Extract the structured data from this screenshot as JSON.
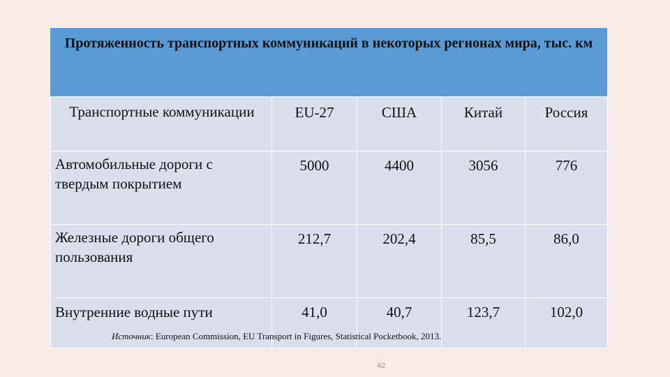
{
  "header": {
    "title": "Протяженность транспортных коммуникаций в некоторых регионах мира, тыс. км"
  },
  "table": {
    "columns": [
      "Транспортные коммуникации",
      "EU-27",
      "США",
      "Китай",
      "Россия"
    ],
    "rows": [
      [
        "Автомобильные дороги с твердым покрытием",
        "5000",
        "4400",
        "3056",
        "776"
      ],
      [
        "Железные дороги общего пользования",
        "212,7",
        "202,4",
        "85,5",
        "86,0"
      ],
      [
        "Внутренние водные пути",
        "41,0",
        "40,7",
        "123,7",
        "102,0"
      ]
    ]
  },
  "source": {
    "label": "Источник",
    "text": ": European Commission, EU Transport in Figures, Statistical Pocketbook, 2013."
  },
  "page_number": "42"
}
